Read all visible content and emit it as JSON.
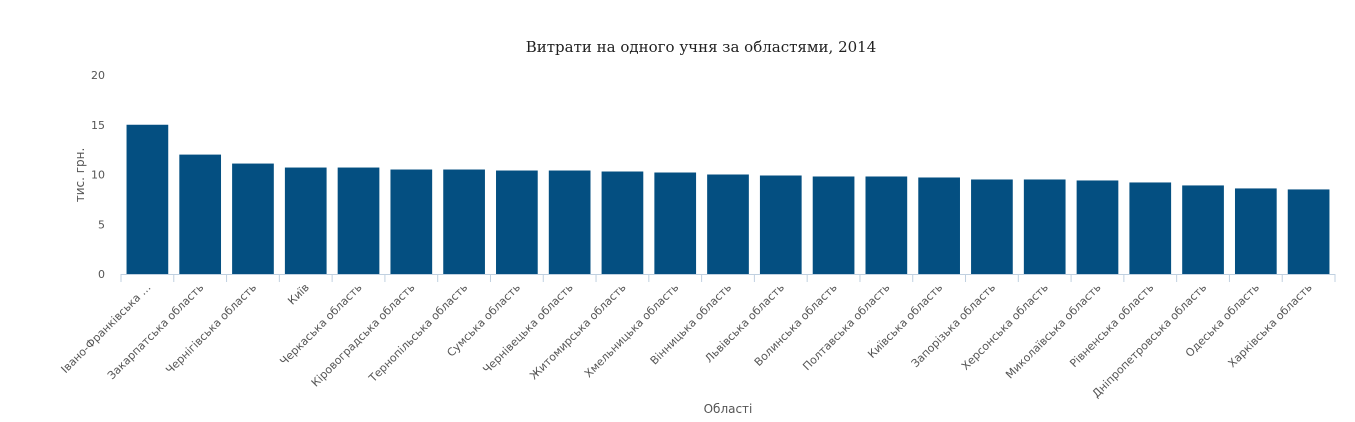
{
  "chart_data": {
    "type": "bar",
    "title": "Витрати на одного учня за областями, 2014",
    "xlabel": "Області",
    "ylabel": "тис. грн.",
    "ylim": [
      0,
      20
    ],
    "yticks": [
      0,
      5,
      10,
      15,
      20
    ],
    "grid": false,
    "legend": "none",
    "bar_color": "#044f81",
    "axis_color": "#c0d0e0",
    "categories": [
      "Івано-Франківська …",
      "Закарпатська область",
      "Чернігівська область",
      "Київ",
      "Черкаська область",
      "Кіровоградська область",
      "Тернопільська область",
      "Сумська область",
      "Чернівецька область",
      "Житомирська область",
      "Хмельницька область",
      "Вінницька область",
      "Львівська область",
      "Волинська область",
      "Полтавська область",
      "Київська область",
      "Запорізька область",
      "Херсонська область",
      "Миколаївська область",
      "Рівненська область",
      "Дніпропетровська область",
      "Одеська область",
      "Харківська область"
    ],
    "values": [
      15.0,
      12.0,
      11.1,
      10.7,
      10.7,
      10.5,
      10.5,
      10.4,
      10.4,
      10.3,
      10.2,
      10.0,
      9.9,
      9.8,
      9.8,
      9.7,
      9.5,
      9.5,
      9.4,
      9.2,
      8.9,
      8.6,
      8.5
    ]
  }
}
